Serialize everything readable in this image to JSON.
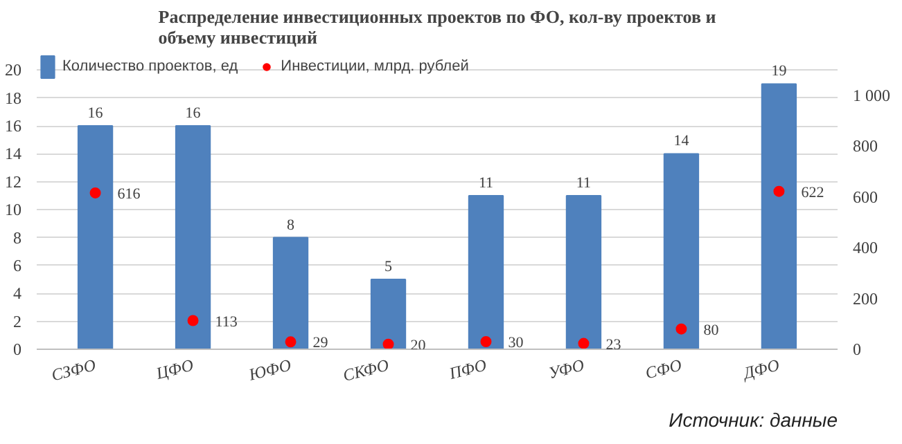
{
  "chart_data": {
    "type": "bar",
    "title": "Распределение инвестиционных проектов по ФО, кол-ву проектов и объему инвестиций",
    "categories": [
      "СЗФО",
      "ЦФО",
      "ЮФО",
      "СКФО",
      "ПФО",
      "УФО",
      "СФО",
      "ДФО"
    ],
    "series": [
      {
        "name": "Количество проектов, ед",
        "color": "#4f81bd",
        "values": [
          16,
          16,
          8,
          5,
          11,
          11,
          14,
          19
        ]
      },
      {
        "name": "Инвестиции, млрд. рублей",
        "type": "scatter",
        "axis": "y2",
        "color": "#ff0000",
        "marker": "circle",
        "values": [
          616,
          113,
          29,
          20,
          30,
          23,
          80,
          622
        ]
      }
    ],
    "ylim": [
      0,
      20
    ],
    "yticks": [
      0,
      2,
      4,
      6,
      8,
      10,
      12,
      14,
      16,
      18,
      20
    ],
    "y2lim": [
      0,
      1100
    ],
    "y2ticks": [
      0,
      200,
      400,
      600,
      800,
      {
        "value": 1000,
        "label": "1 000"
      }
    ],
    "data_labels": true,
    "legend": "top left",
    "grid": "y",
    "annotations": [
      "Источник: данные"
    ]
  }
}
